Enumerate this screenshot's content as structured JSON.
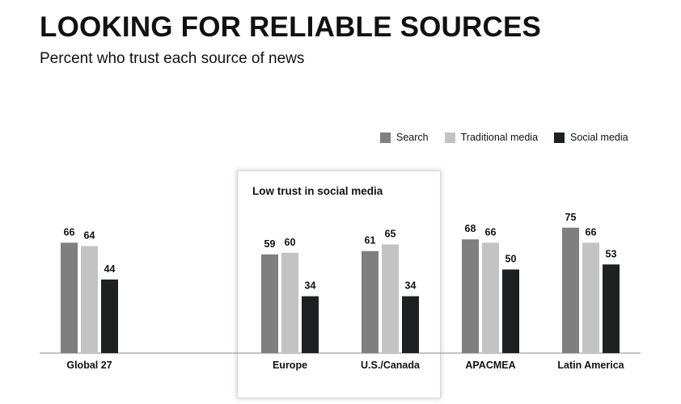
{
  "title": "LOOKING FOR RELIABLE SOURCES",
  "subtitle": "Percent who trust each source of news",
  "highlight": {
    "label": "Low trust in social media"
  },
  "legend": [
    {
      "name": "Search",
      "color": "#7f7f7f"
    },
    {
      "name": "Traditional media",
      "color": "#c3c3c3"
    },
    {
      "name": "Social media",
      "color": "#1e2122"
    }
  ],
  "chart_data": {
    "type": "bar",
    "categories": [
      "Global 27",
      "Europe",
      "U.S./Canada",
      "APACMEA",
      "Latin America"
    ],
    "series": [
      {
        "name": "Search",
        "color": "#7f7f7f",
        "values": [
          66,
          59,
          61,
          68,
          75
        ]
      },
      {
        "name": "Traditional media",
        "color": "#c3c3c3",
        "values": [
          64,
          60,
          65,
          66,
          66
        ]
      },
      {
        "name": "Social media",
        "color": "#1e2122",
        "values": [
          44,
          34,
          34,
          50,
          53
        ]
      }
    ],
    "title": "LOOKING FOR RELIABLE SOURCES",
    "subtitle": "Percent who trust each source of news",
    "ylim": [
      0,
      100
    ],
    "grid": false,
    "legend_position": "top-right",
    "highlighted_categories": [
      "Europe",
      "U.S./Canada"
    ]
  }
}
